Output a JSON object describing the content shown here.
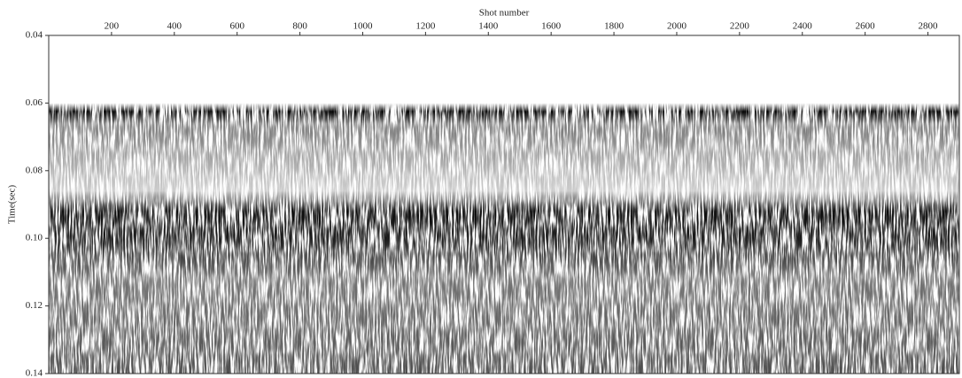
{
  "chart_data": {
    "type": "seismic-section",
    "xlabel": "Shot number",
    "ylabel": "Time(sec)",
    "xlim": [
      0,
      2900
    ],
    "xticks": [
      200,
      400,
      600,
      800,
      1000,
      1200,
      1400,
      1600,
      1800,
      2000,
      2200,
      2400,
      2600,
      2800
    ],
    "ylim": [
      0.04,
      0.14
    ],
    "yticks": [
      0.04,
      0.06,
      0.08,
      {
        "value": 0.1,
        "label": "0.10"
      },
      0.12,
      0.14
    ],
    "y_inverted": true
  }
}
